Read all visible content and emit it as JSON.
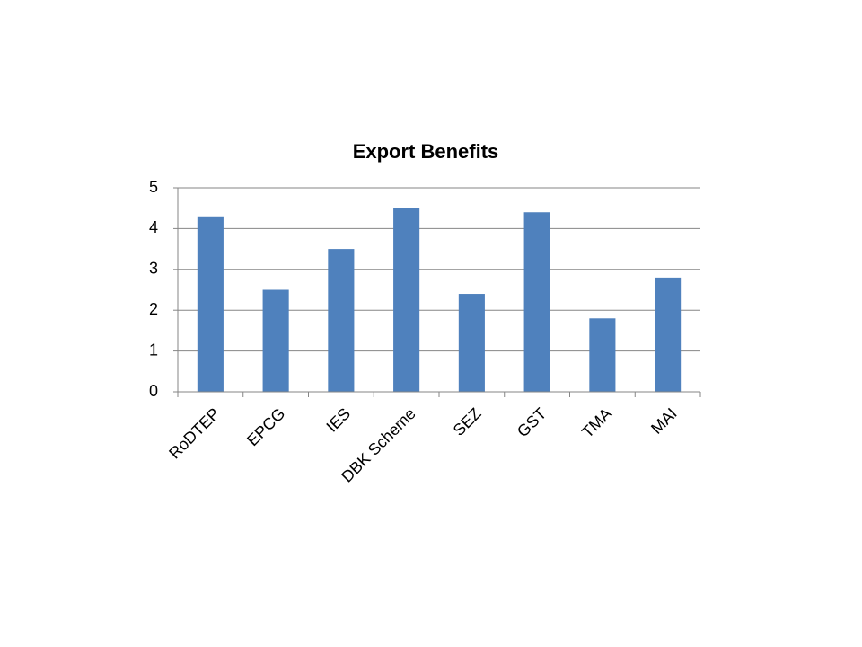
{
  "chart_data": {
    "type": "bar",
    "title": "Export Benefits",
    "categories": [
      "RoDTEP",
      "EPCG",
      "IES",
      "DBK Scheme",
      "SEZ",
      "GST",
      "TMA",
      "MAI"
    ],
    "values": [
      4.3,
      2.5,
      3.5,
      4.5,
      2.4,
      4.4,
      1.8,
      2.8
    ],
    "color": "#4f81bd",
    "ylim": [
      0,
      5
    ],
    "yticks": [
      0,
      1,
      2,
      3,
      4,
      5
    ],
    "grid": true
  }
}
